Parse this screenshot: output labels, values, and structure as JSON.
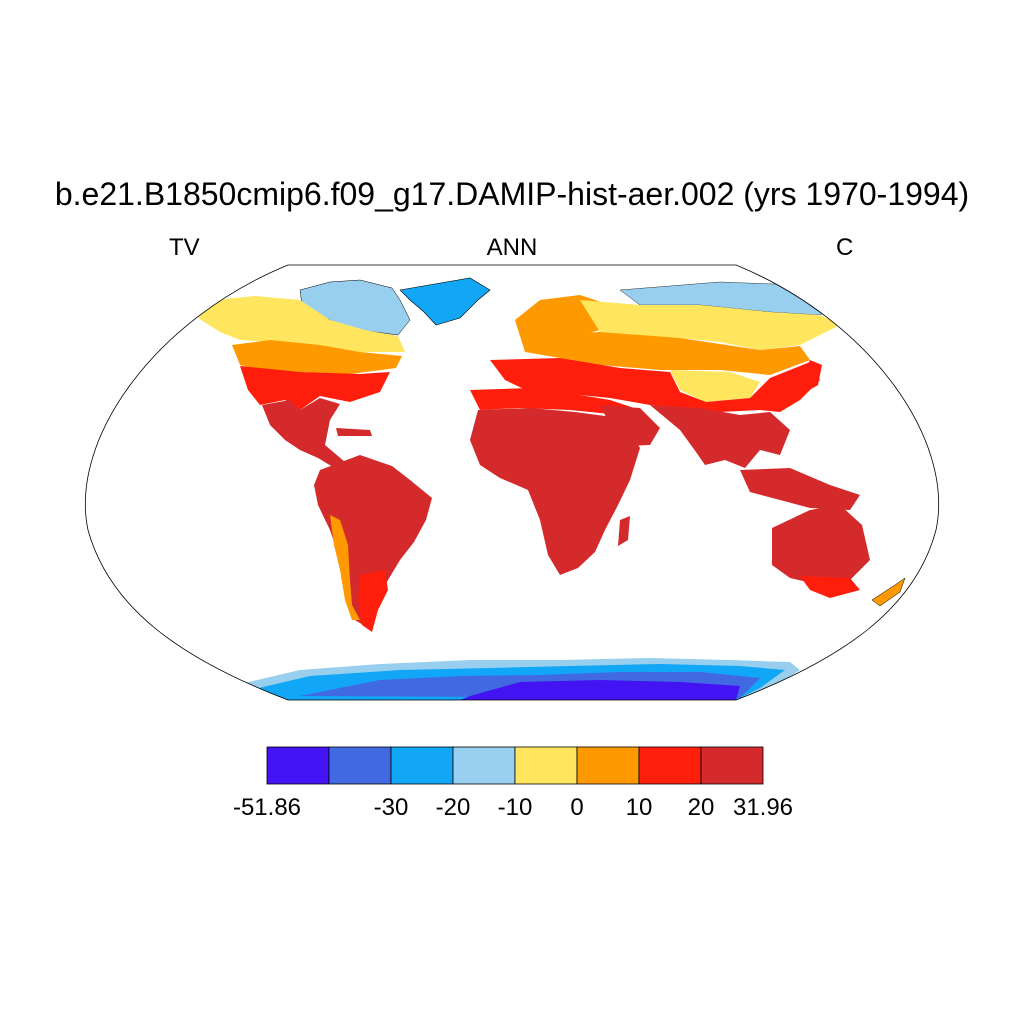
{
  "title": "b.e21.B1850cmip6.f09_g17.DAMIP-hist-aer.002 (yrs 1970-1994)",
  "subtitles": {
    "left": "TV",
    "center": "ANN",
    "right": "C"
  },
  "map": {
    "projection": "robinson",
    "variable_label": "TV",
    "season": "ANN",
    "units": "C"
  },
  "colorbar": {
    "colors": [
      "#4313f4",
      "#4169e1",
      "#12a6f6",
      "#98cfee",
      "#ffe65e",
      "#ff9900",
      "#ff1d0c",
      "#d42a2b"
    ],
    "labels": [
      "-51.86",
      "-30",
      "-20",
      "-10",
      "0",
      "10",
      "20",
      "31.96"
    ],
    "label_box_index": [
      0,
      2,
      3,
      4,
      5,
      6,
      7,
      8
    ]
  },
  "chart_data": {
    "type": "heatmap",
    "title": "b.e21.B1850cmip6.f09_g17.DAMIP-hist-aer.002 (yrs 1970-1994)",
    "left_label": "TV",
    "center_label": "ANN",
    "right_label": "C",
    "value_range": [
      -51.86,
      31.96
    ],
    "levels": [
      -30,
      -20,
      -10,
      0,
      10,
      20
    ],
    "colors": [
      "#4313f4",
      "#4169e1",
      "#12a6f6",
      "#98cfee",
      "#ffe65e",
      "#ff9900",
      "#ff1d0c",
      "#d42a2b"
    ]
  }
}
